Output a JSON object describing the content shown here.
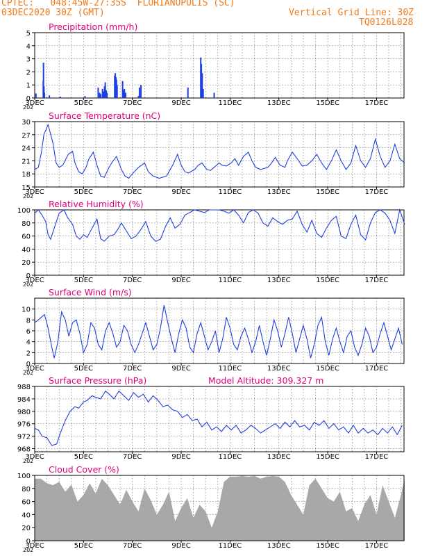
{
  "header": {
    "line1_left": "CPTEC:   048:45W-27:35S  FLORIANOPOLIS (SC)",
    "line2_left": "03DEC2020 30Z (GMT)",
    "line2_right": "Vertical Grid Line: 30Z",
    "line3_right": "TQ0126L028"
  },
  "colors": {
    "header": "#f07a1a",
    "title": "#e0007a",
    "line": "#1f3fe0",
    "cloud": "#a8a8a8"
  },
  "x_ticks": [
    "3DEC",
    "5DEC",
    "7DEC",
    "9DEC",
    "11DEC",
    "13DEC",
    "15DEC",
    "17DEC"
  ],
  "x_stub": "202",
  "chart_data": [
    {
      "id": "precip",
      "type": "bar",
      "title": "Precipitation (mm/h)",
      "ylim": [
        0,
        5
      ],
      "yticks": [
        0,
        1,
        2,
        3,
        4,
        5
      ],
      "x_days": [
        0.1,
        0.7,
        0.72,
        0.76,
        0.8,
        1.2,
        2.1,
        4.12,
        5.2,
        5.32,
        5.4,
        5.55,
        5.65,
        5.72,
        5.78,
        5.85,
        5.92,
        6.55,
        6.6,
        6.65,
        6.7,
        6.75,
        7.2,
        7.25,
        7.35,
        7.45,
        8.5,
        8.58,
        8.7,
        12.55,
        13.6,
        13.65,
        13.72,
        13.8,
        14.7
      ],
      "values": [
        0.35,
        1.3,
        2.7,
        0.9,
        0.4,
        0.2,
        0.1,
        0.15,
        0.8,
        0.4,
        0.3,
        0.7,
        0.5,
        0.9,
        1.2,
        0.6,
        0.4,
        1.7,
        1.9,
        1.6,
        1.4,
        1.0,
        1.3,
        0.6,
        0.7,
        0.4,
        0.15,
        0.8,
        1.0,
        0.8,
        3.1,
        2.6,
        1.9,
        0.7,
        0.4
      ]
    },
    {
      "id": "temp",
      "type": "line",
      "title": "Surface Temperature (nC)",
      "ylim": [
        15,
        30
      ],
      "yticks": [
        15,
        18,
        21,
        24,
        27,
        30
      ],
      "x_days": [
        0,
        0.3,
        0.55,
        0.75,
        1.1,
        1.5,
        1.75,
        2.0,
        2.3,
        2.75,
        3.1,
        3.3,
        3.6,
        3.9,
        4.2,
        4.45,
        4.8,
        5.1,
        5.4,
        5.7,
        6.0,
        6.3,
        6.7,
        7.1,
        7.4,
        7.7,
        8.0,
        8.5,
        9.0,
        9.3,
        9.7,
        10.2,
        10.8,
        11.3,
        11.7,
        12.0,
        12.3,
        12.6,
        13.1,
        13.4,
        13.7,
        14.1,
        14.4,
        14.7,
        15.1,
        15.35,
        15.7,
        16.1,
        16.4,
        16.7,
        17.1,
        17.5,
        17.8,
        18.1,
        18.5,
        19.1,
        19.4,
        19.7,
        20.1,
        20.5,
        20.7,
        21.1,
        21.5,
        21.9,
        22.3,
        22.7,
        23.1,
        23.5,
        23.9,
        24.3,
        24.7,
        25.1,
        25.5,
        25.9,
        26.3,
        26.7,
        27.1,
        27.5,
        27.9,
        28.3,
        28.7,
        29.1,
        29.5,
        29.9,
        30.3
      ],
      "values": [
        19.0,
        19.5,
        23.0,
        27.0,
        29.3,
        25.0,
        20.5,
        19.5,
        20.0,
        22.5,
        23.2,
        20.5,
        18.5,
        18.0,
        19.5,
        21.5,
        23.0,
        20.0,
        17.5,
        17.2,
        19.0,
        20.5,
        22.0,
        19.0,
        17.5,
        17.0,
        18.0,
        19.5,
        20.5,
        18.5,
        17.5,
        17.0,
        17.5,
        20.0,
        22.5,
        20.0,
        18.5,
        18.2,
        19.0,
        20.0,
        20.5,
        19.0,
        18.8,
        19.5,
        20.5,
        20.0,
        19.8,
        20.5,
        21.5,
        20.0,
        22.0,
        23.0,
        21.0,
        19.5,
        19.0,
        19.5,
        20.5,
        21.8,
        20.0,
        19.5,
        21.0,
        23.0,
        21.5,
        19.8,
        20.0,
        21.0,
        22.5,
        20.5,
        19.0,
        21.0,
        23.5,
        21.0,
        19.0,
        20.5,
        24.5,
        21.0,
        19.5,
        21.5,
        26.0,
        22.0,
        19.5,
        21.0,
        24.8,
        21.5,
        20.5
      ]
    },
    {
      "id": "rh",
      "type": "line",
      "title": "Relative Humidity (%)",
      "ylim": [
        0,
        100
      ],
      "yticks": [
        0,
        20,
        40,
        60,
        80,
        100
      ],
      "x_days": [
        0,
        0.3,
        0.6,
        0.9,
        1.1,
        1.3,
        1.6,
        2.0,
        2.4,
        2.7,
        3.1,
        3.4,
        3.7,
        4.0,
        4.3,
        4.7,
        5.1,
        5.4,
        5.7,
        6.1,
        6.5,
        6.8,
        7.1,
        7.5,
        7.9,
        8.3,
        8.7,
        9.1,
        9.5,
        9.9,
        10.3,
        10.7,
        11.1,
        11.5,
        11.9,
        12.3,
        12.7,
        13.1,
        13.5,
        13.9,
        14.3,
        14.7,
        15.1,
        15.5,
        15.9,
        16.3,
        16.7,
        17.1,
        17.5,
        17.9,
        18.3,
        18.7,
        19.1,
        19.5,
        19.9,
        20.3,
        20.7,
        21.1,
        21.5,
        21.9,
        22.3,
        22.7,
        23.1,
        23.5,
        23.9,
        24.3,
        24.7,
        25.1,
        25.5,
        25.9,
        26.3,
        26.7,
        27.1,
        27.5,
        27.9,
        28.3,
        28.7,
        29.1,
        29.5,
        29.9,
        30.3
      ],
      "values": [
        95,
        100,
        92,
        82,
        62,
        55,
        72,
        95,
        100,
        88,
        78,
        60,
        55,
        62,
        58,
        72,
        86,
        56,
        52,
        60,
        62,
        70,
        80,
        68,
        56,
        60,
        70,
        82,
        60,
        52,
        55,
        74,
        88,
        72,
        78,
        92,
        96,
        100,
        98,
        96,
        100,
        100,
        100,
        98,
        95,
        100,
        92,
        80,
        96,
        100,
        95,
        80,
        75,
        88,
        82,
        78,
        84,
        86,
        98,
        78,
        66,
        84,
        64,
        58,
        72,
        84,
        90,
        60,
        56,
        78,
        92,
        62,
        54,
        80,
        96,
        100,
        95,
        84,
        64,
        100,
        78
      ]
    },
    {
      "id": "wind",
      "type": "line",
      "title": "Surface Wind (m/s)",
      "ylim": [
        0,
        12
      ],
      "yticks": [
        0,
        2,
        4,
        6,
        8,
        10
      ],
      "x_days": [
        0,
        0.4,
        0.8,
        1.1,
        1.4,
        1.6,
        1.9,
        2.2,
        2.5,
        2.8,
        3.1,
        3.4,
        3.7,
        4.0,
        4.3,
        4.6,
        4.9,
        5.2,
        5.5,
        5.8,
        6.1,
        6.4,
        6.7,
        7.0,
        7.3,
        7.6,
        7.9,
        8.2,
        8.5,
        8.8,
        9.1,
        9.4,
        9.7,
        10.0,
        10.3,
        10.6,
        10.9,
        11.2,
        11.5,
        11.8,
        12.1,
        12.4,
        12.7,
        13.0,
        13.3,
        13.6,
        13.9,
        14.2,
        14.5,
        14.8,
        15.1,
        15.4,
        15.7,
        16.0,
        16.3,
        16.6,
        16.9,
        17.2,
        17.5,
        17.8,
        18.1,
        18.4,
        18.7,
        19.0,
        19.3,
        19.6,
        19.9,
        20.2,
        20.5,
        20.8,
        21.1,
        21.4,
        21.7,
        22.0,
        22.3,
        22.6,
        22.9,
        23.2,
        23.5,
        23.8,
        24.1,
        24.4,
        24.7,
        25.0,
        25.3,
        25.6,
        25.9,
        26.2,
        26.5,
        26.8,
        27.1,
        27.4,
        27.7,
        28.0,
        28.3,
        28.6,
        28.9,
        29.2,
        29.5,
        29.8,
        30.1
      ],
      "values": [
        7.5,
        8.2,
        9.0,
        6.5,
        3.0,
        1.0,
        4.0,
        9.5,
        8.0,
        5.0,
        7.5,
        8.0,
        5.5,
        2.0,
        3.5,
        7.5,
        6.5,
        3.5,
        2.5,
        6.0,
        7.5,
        5.5,
        3.0,
        4.0,
        7.0,
        6.0,
        3.5,
        2.0,
        3.5,
        5.5,
        7.5,
        5.0,
        2.5,
        3.5,
        6.5,
        10.7,
        7.5,
        4.5,
        2.0,
        5.5,
        8.0,
        6.5,
        3.0,
        2.0,
        5.5,
        7.5,
        5.0,
        2.5,
        4.0,
        6.0,
        2.0,
        4.5,
        8.5,
        6.5,
        3.5,
        2.5,
        5.0,
        6.5,
        4.5,
        2.0,
        4.0,
        7.0,
        4.0,
        1.5,
        4.5,
        8.0,
        6.0,
        3.0,
        5.5,
        8.5,
        5.5,
        2.0,
        4.5,
        7.0,
        4.5,
        1.0,
        3.5,
        7.0,
        8.5,
        4.0,
        1.5,
        4.5,
        6.5,
        4.0,
        2.0,
        5.0,
        6.0,
        3.0,
        1.5,
        3.5,
        6.5,
        5.0,
        2.0,
        3.0,
        5.5,
        7.5,
        5.0,
        2.5,
        4.5,
        6.5,
        3.5
      ]
    },
    {
      "id": "pressure",
      "type": "line",
      "title": "Surface Pressure (hPa)",
      "annotation": "Model Altitude: 309.327 m",
      "ylim": [
        967,
        988
      ],
      "yticks": [
        968,
        972,
        976,
        980,
        984,
        988
      ],
      "x_days": [
        0,
        0.3,
        0.6,
        1.0,
        1.4,
        1.8,
        2.1,
        2.5,
        2.9,
        3.3,
        3.6,
        4.0,
        4.3,
        4.7,
        5.0,
        5.4,
        5.8,
        6.1,
        6.5,
        6.9,
        7.3,
        7.7,
        8.1,
        8.5,
        8.9,
        9.3,
        9.7,
        10.1,
        10.5,
        10.9,
        11.3,
        11.7,
        12.1,
        12.5,
        12.9,
        13.3,
        13.7,
        14.1,
        14.5,
        14.9,
        15.3,
        15.7,
        16.1,
        16.5,
        16.9,
        17.3,
        17.7,
        18.1,
        18.5,
        18.9,
        19.3,
        19.7,
        20.1,
        20.5,
        20.9,
        21.3,
        21.7,
        22.1,
        22.5,
        22.9,
        23.3,
        23.7,
        24.1,
        24.5,
        24.9,
        25.3,
        25.7,
        26.1,
        26.5,
        26.9,
        27.3,
        27.7,
        28.1,
        28.5,
        28.9,
        29.3,
        29.7,
        30.1
      ],
      "values": [
        974.5,
        974.0,
        972.0,
        971.5,
        969.0,
        969.5,
        973.0,
        977.0,
        980.0,
        981.5,
        981.0,
        983.0,
        983.5,
        985.0,
        984.5,
        984.0,
        986.5,
        985.5,
        984.0,
        986.5,
        985.0,
        983.5,
        986.0,
        984.5,
        985.5,
        983.0,
        985.0,
        983.5,
        981.5,
        982.0,
        980.5,
        980.0,
        978.0,
        979.0,
        977.0,
        977.5,
        975.0,
        976.5,
        974.0,
        975.0,
        973.5,
        975.5,
        974.0,
        975.5,
        973.0,
        974.0,
        975.5,
        974.5,
        973.0,
        974.0,
        975.0,
        976.0,
        974.5,
        976.5,
        975.0,
        977.0,
        975.0,
        975.5,
        974.0,
        976.5,
        975.5,
        977.0,
        974.5,
        976.0,
        974.0,
        975.0,
        973.0,
        975.5,
        973.0,
        974.5,
        973.0,
        974.0,
        972.5,
        974.5,
        973.0,
        975.0,
        972.5,
        975.5
      ]
    },
    {
      "id": "cloud",
      "type": "area",
      "title": "Cloud Cover (%)",
      "ylim": [
        0,
        100
      ],
      "yticks": [
        0,
        20,
        40,
        60,
        80,
        100
      ],
      "x_days": [
        0,
        0.5,
        1.0,
        1.5,
        2.0,
        2.5,
        3.0,
        3.5,
        4.0,
        4.5,
        5.0,
        5.5,
        6.0,
        6.5,
        7.0,
        7.5,
        8.0,
        8.5,
        9.0,
        9.5,
        10.0,
        10.5,
        11.0,
        11.5,
        12.0,
        12.5,
        13.0,
        13.5,
        14.0,
        14.5,
        15.0,
        15.5,
        16.0,
        16.5,
        17.0,
        17.5,
        18.0,
        18.5,
        19.0,
        19.5,
        20.0,
        20.5,
        21.0,
        21.5,
        22.0,
        22.5,
        23.0,
        23.5,
        24.0,
        24.5,
        25.0,
        25.5,
        26.0,
        26.5,
        27.0,
        27.5,
        28.0,
        28.5,
        29.0,
        29.5,
        30.0,
        30.3
      ],
      "values": [
        95,
        95,
        88,
        85,
        90,
        75,
        86,
        60,
        70,
        88,
        72,
        95,
        85,
        70,
        55,
        78,
        60,
        45,
        80,
        62,
        40,
        55,
        75,
        30,
        50,
        65,
        35,
        55,
        45,
        20,
        45,
        90,
        98,
        98,
        99,
        98,
        99,
        95,
        98,
        99,
        98,
        90,
        70,
        55,
        40,
        85,
        95,
        80,
        65,
        60,
        75,
        45,
        50,
        30,
        55,
        70,
        40,
        85,
        60,
        35,
        70,
        95
      ]
    }
  ]
}
